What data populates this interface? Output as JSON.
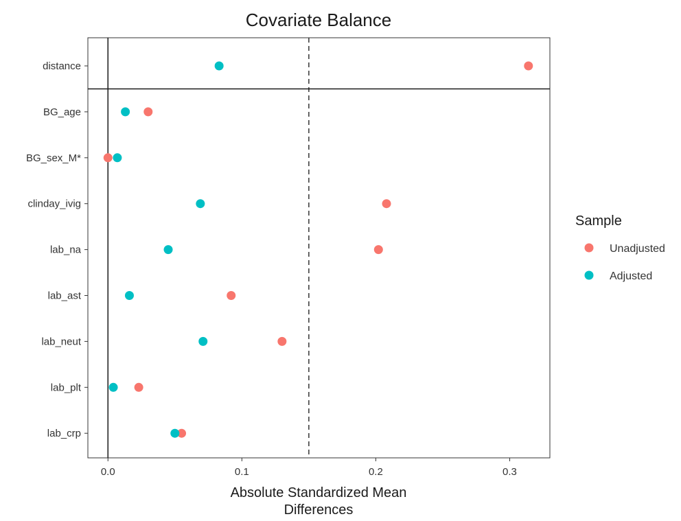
{
  "chart_data": {
    "type": "scatter",
    "title": "Covariate Balance",
    "xlabel": [
      "Absolute Standardized Mean",
      "Differences"
    ],
    "ylabel": "",
    "xlim": [
      -0.015,
      0.33
    ],
    "xticks": [
      0.0,
      0.1,
      0.2,
      0.3
    ],
    "xtick_labels": [
      "0.0",
      "0.1",
      "0.2",
      "0.3"
    ],
    "threshold": 0.15,
    "reference_line": 0,
    "categories": [
      "distance",
      "BG_age",
      "BG_sex_M*",
      "clinday_ivig",
      "lab_na",
      "lab_ast",
      "lab_neut",
      "lab_plt",
      "lab_crp"
    ],
    "series": [
      {
        "name": "Unadjusted",
        "color": "#F8766D",
        "values": [
          0.314,
          0.03,
          0.0,
          0.208,
          0.202,
          0.092,
          0.13,
          0.023,
          0.055
        ]
      },
      {
        "name": "Adjusted",
        "color": "#00BFC4",
        "values": [
          0.083,
          0.013,
          0.007,
          0.069,
          0.045,
          0.016,
          0.071,
          0.004,
          0.05
        ]
      }
    ],
    "legend": {
      "title": "Sample",
      "position": "right"
    },
    "grid": false
  }
}
